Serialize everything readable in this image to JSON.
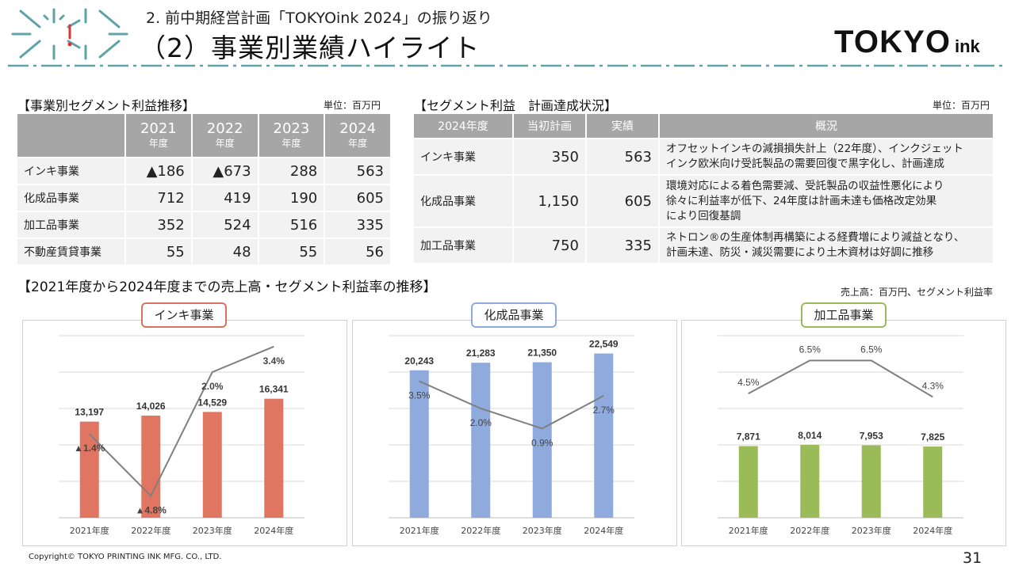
{
  "header": {
    "subtitle": "2. 前中期経営計画「TOKYOink 2024」の振り返り",
    "title": "（2）事業別業績ハイライト",
    "brand_main": "TOKYO",
    "brand_sub": "ink"
  },
  "segment_profit_table": {
    "title": "【事業別セグメント利益推移】",
    "unit": "単位：百万円",
    "columns": [
      {
        "year": "2021",
        "suffix": "年度"
      },
      {
        "year": "2022",
        "suffix": "年度"
      },
      {
        "year": "2023",
        "suffix": "年度"
      },
      {
        "year": "2024",
        "suffix": "年度"
      }
    ],
    "rows": [
      {
        "label": "インキ事業",
        "values": [
          "▲186",
          "▲673",
          "288",
          "563"
        ]
      },
      {
        "label": "化成品事業",
        "values": [
          "712",
          "419",
          "190",
          "605"
        ]
      },
      {
        "label": "加工品事業",
        "values": [
          "352",
          "524",
          "516",
          "335"
        ]
      },
      {
        "label": "不動産賃貸事業",
        "values": [
          "55",
          "48",
          "55",
          "56"
        ]
      }
    ]
  },
  "plan_achievement_table": {
    "title": "【セグメント利益　計画達成状況】",
    "unit": "単位：百万円",
    "headers": [
      "2024年度",
      "当初計画",
      "実績",
      "概況"
    ],
    "rows": [
      {
        "label": "インキ事業",
        "plan": "350",
        "actual": "563",
        "summary": [
          "オフセットインキの減損損失計上（22年度）、インクジェット",
          "インク欧米向け受託製品の需要回復で黒字化し、計画達成"
        ]
      },
      {
        "label": "化成品事業",
        "plan": "1,150",
        "actual": "605",
        "summary": [
          "環境対応による着色需要減、受託製品の収益性悪化により",
          "徐々に利益率が低下、24年度は計画未達も価格改定効果",
          "により回復基調"
        ]
      },
      {
        "label": "加工品事業",
        "plan": "750",
        "actual": "335",
        "summary": [
          "ネトロン®の生産体制再構築による経費増により減益となり、",
          "計画未達、防災・減災需要により土木資材は好調に推移"
        ]
      }
    ]
  },
  "trend_section": {
    "title": "【2021年度から2024年度までの売上高・セグメント利益率の推移】",
    "unit": "売上高：百万円、セグメント利益率"
  },
  "chart_data": [
    {
      "type": "bar",
      "title": "インキ事業",
      "categories": [
        "2021年度",
        "2022年度",
        "2023年度",
        "2024年度"
      ],
      "series": [
        {
          "kind": "bar",
          "values": [
            13197,
            14026,
            14529,
            16341
          ],
          "labels": [
            "13,197",
            "14,026",
            "14,529",
            "16,341"
          ]
        },
        {
          "kind": "line",
          "values": [
            -1.4,
            -4.8,
            2.0,
            3.4
          ],
          "labels": [
            "▲1.4%",
            "▲4.8%",
            "2.0%",
            "3.4%"
          ]
        }
      ],
      "bar_ylim": [
        0,
        25000
      ],
      "line_ylim": [
        -6,
        4
      ],
      "grid": true,
      "colors": {
        "bar": "#e07662",
        "line": "#7f7f7f",
        "pill_border": "#d9735f"
      }
    },
    {
      "type": "bar",
      "title": "化成品事業",
      "categories": [
        "2021年度",
        "2022年度",
        "2023年度",
        "2024年度"
      ],
      "series": [
        {
          "kind": "bar",
          "values": [
            20243,
            21283,
            21350,
            22549
          ],
          "labels": [
            "20,243",
            "21,283",
            "21,350",
            "22,549"
          ]
        },
        {
          "kind": "line",
          "values": [
            3.5,
            2.0,
            0.9,
            2.7
          ],
          "labels": [
            "3.5%",
            "2.0%",
            "0.9%",
            "2.7%"
          ]
        }
      ],
      "bar_ylim": [
        0,
        25000
      ],
      "line_ylim": [
        -4,
        6
      ],
      "grid": true,
      "colors": {
        "bar": "#8faadc",
        "line": "#7f7f7f",
        "pill_border": "#8faadc"
      }
    },
    {
      "type": "bar",
      "title": "加工品事業",
      "categories": [
        "2021年度",
        "2022年度",
        "2023年度",
        "2024年度"
      ],
      "series": [
        {
          "kind": "bar",
          "values": [
            7871,
            8014,
            7953,
            7825
          ],
          "labels": [
            "7,871",
            "8,014",
            "7,953",
            "7,825"
          ]
        },
        {
          "kind": "line",
          "values": [
            4.5,
            6.5,
            6.5,
            4.3
          ],
          "labels": [
            "4.5%",
            "6.5%",
            "6.5%",
            "4.3%"
          ]
        }
      ],
      "bar_ylim": [
        0,
        20000
      ],
      "line_ylim": [
        -3,
        8
      ],
      "grid": true,
      "colors": {
        "bar": "#9bbb59",
        "line": "#7f7f7f",
        "pill_border": "#9bbb59"
      }
    }
  ],
  "footer": {
    "copyright": "Copyright© TOKYO PRINTING INK MFG. CO., LTD.",
    "page": "31"
  },
  "colors": {
    "accent_teal": "#5fa3a8",
    "accent_red": "#d7363a",
    "header_gray": "#a6a6a6",
    "cell_gray": "#f2f2f2"
  }
}
